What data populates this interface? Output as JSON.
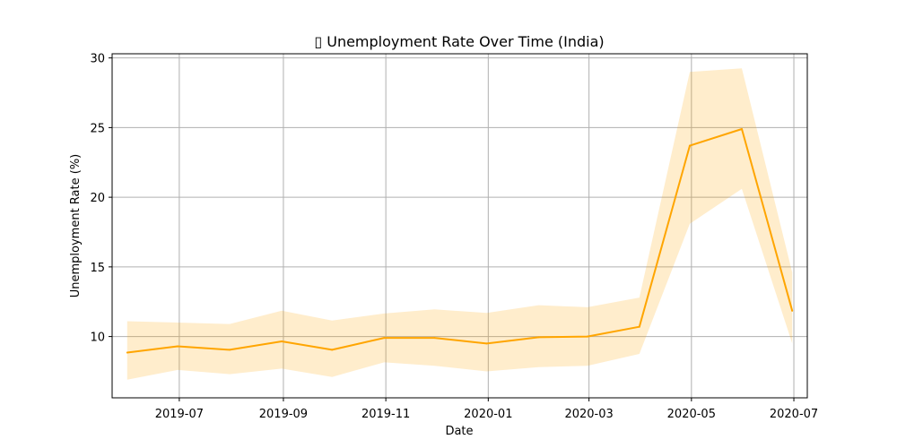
{
  "chart_data": {
    "type": "line",
    "title": "▯ Unemployment Rate Over Time (India)",
    "xlabel": "Date",
    "ylabel": "Unemployment Rate (%)",
    "x": [
      "2019-05-31",
      "2019-06-30",
      "2019-07-31",
      "2019-08-31",
      "2019-09-30",
      "2019-10-31",
      "2019-11-30",
      "2019-12-31",
      "2020-01-31",
      "2020-02-29",
      "2020-03-31",
      "2020-04-30",
      "2020-05-31",
      "2020-06-30"
    ],
    "series": [
      {
        "name": "",
        "color": "#ffa500",
        "values": [
          8.85,
          9.3,
          9.05,
          9.65,
          9.05,
          9.9,
          9.9,
          9.5,
          9.95,
          10.0,
          10.7,
          23.7,
          24.9,
          11.85
        ],
        "band_lower": [
          6.9,
          7.6,
          7.3,
          7.7,
          7.1,
          8.15,
          7.9,
          7.5,
          7.8,
          7.9,
          8.75,
          18.1,
          20.6,
          9.5
        ],
        "band_upper": [
          11.1,
          11.0,
          10.9,
          11.85,
          11.15,
          11.65,
          11.95,
          11.7,
          12.25,
          12.1,
          12.8,
          29.0,
          29.25,
          14.6
        ]
      }
    ],
    "x_ticks": [
      "2019-07",
      "2019-09",
      "2019-11",
      "2020-01",
      "2020-03",
      "2020-05",
      "2020-07"
    ],
    "y_ticks": [
      10,
      15,
      20,
      25,
      30
    ],
    "ylim": [
      5.6,
      30.3
    ],
    "xlim": [
      "2019-05-22",
      "2020-07-09"
    ],
    "grid": true,
    "band_color": "#ffa500"
  }
}
